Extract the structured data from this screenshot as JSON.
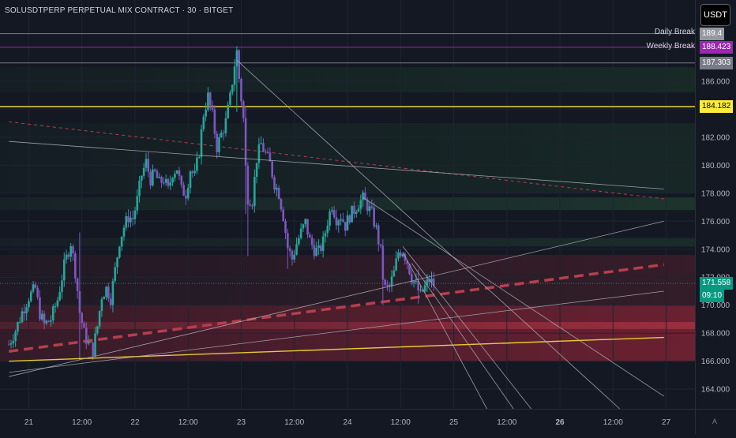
{
  "title": "SOLUSDTPERP PERPETUAL MIX CONTRACT · 30 · BITGET",
  "currency_button": "USDT",
  "scale_button": "A",
  "levels": [
    {
      "key": "daily",
      "name": "Daily Break",
      "value": "189.4",
      "price": 189.4,
      "color": "#9598a1",
      "line": "#787b86"
    },
    {
      "key": "weekly",
      "name": "Weekly Break",
      "value": "188.423",
      "price": 188.423,
      "color": "#9c27b0",
      "line": "#9c27b0"
    },
    {
      "key": "prev",
      "name": "",
      "value": "187.303",
      "price": 187.303,
      "color": "#787b86",
      "line": "#787b86"
    },
    {
      "key": "yellow",
      "name": "",
      "value": "184.182",
      "price": 184.182,
      "color": "#ffeb3b",
      "line": "#ffeb3b"
    }
  ],
  "last_price": {
    "value": "171.558",
    "price": 171.558,
    "countdown": "09:10",
    "color": "#089981"
  },
  "colors": {
    "bull": "#26a69a",
    "bear": "#7e57c2",
    "background": "#141823",
    "grid": "#1f2431",
    "axis_text": "#b2b5be"
  },
  "chart_data": {
    "type": "candlestick",
    "title": "SOLUSDTPERP PERPETUAL MIX CONTRACT · 30 · BITGET",
    "x_range": [
      "Jan 20 19:30",
      "Jan 27 08:00"
    ],
    "ylim": [
      162.6,
      191.8
    ],
    "grid": true,
    "y_ticks": [
      164,
      166,
      168,
      170,
      172,
      174,
      176,
      178,
      180,
      182,
      184,
      186
    ],
    "x_ticks": [
      {
        "label": "21",
        "h": 4.5
      },
      {
        "label": "12:00",
        "h": 16.5
      },
      {
        "label": "22",
        "h": 28.5
      },
      {
        "label": "12:00",
        "h": 40.5
      },
      {
        "label": "23",
        "h": 52.5
      },
      {
        "label": "12:00",
        "h": 64.5
      },
      {
        "label": "24",
        "h": 76.5
      },
      {
        "label": "12:00",
        "h": 88.5
      },
      {
        "label": "25",
        "h": 100.5
      },
      {
        "label": "12:00",
        "h": 112.5
      },
      {
        "label": "26",
        "h": 124.5,
        "bold": true
      },
      {
        "label": "12:00",
        "h": 136.5
      },
      {
        "label": "27",
        "h": 148.5
      }
    ],
    "price_path": [
      [
        0,
        167.2
      ],
      [
        1.5,
        168.2
      ],
      [
        3,
        169.5
      ],
      [
        4.5,
        170.6
      ],
      [
        6,
        171.2
      ],
      [
        7,
        169.4
      ],
      [
        8,
        168.6
      ],
      [
        9.5,
        169.0
      ],
      [
        11,
        170.4
      ],
      [
        12.5,
        172.8
      ],
      [
        14,
        174.5
      ],
      [
        15.2,
        172.0
      ],
      [
        16,
        169.5
      ],
      [
        17,
        168.0
      ],
      [
        18,
        167.2
      ],
      [
        19,
        166.8
      ],
      [
        20,
        168.5
      ],
      [
        21,
        170.7
      ],
      [
        22,
        171.2
      ],
      [
        23,
        170.5
      ],
      [
        24,
        172.5
      ],
      [
        25,
        174.6
      ],
      [
        26,
        175.6
      ],
      [
        27,
        176.3
      ],
      [
        28,
        176.2
      ],
      [
        29,
        177.5
      ],
      [
        30,
        179.3
      ],
      [
        31,
        180.2
      ],
      [
        32,
        179.0
      ],
      [
        33,
        179.4
      ],
      [
        34,
        178.7
      ],
      [
        35,
        179.0
      ],
      [
        36,
        178.2
      ],
      [
        37,
        179.5
      ],
      [
        38,
        179.8
      ],
      [
        39,
        178.2
      ],
      [
        40,
        178.0
      ],
      [
        41,
        179.7
      ],
      [
        42,
        179.2
      ],
      [
        43,
        181.0
      ],
      [
        44,
        183.7
      ],
      [
        45,
        184.9
      ],
      [
        46,
        183.5
      ],
      [
        47,
        181.3
      ],
      [
        48,
        182.2
      ],
      [
        49,
        183.1
      ],
      [
        50,
        184.8
      ],
      [
        51,
        187.2
      ],
      [
        51.5,
        188.1
      ],
      [
        52,
        186.2
      ],
      [
        53,
        183.3
      ],
      [
        53.5,
        179.8
      ],
      [
        54,
        177.7
      ],
      [
        55,
        177.5
      ],
      [
        56,
        180.5
      ],
      [
        57,
        181.5
      ],
      [
        58,
        180.8
      ],
      [
        59,
        180.1
      ],
      [
        60,
        178.7
      ],
      [
        61,
        178.0
      ],
      [
        62,
        176.4
      ],
      [
        63,
        174.1
      ],
      [
        64,
        173.3
      ],
      [
        65,
        174.4
      ],
      [
        66,
        175.2
      ],
      [
        67,
        175.9
      ],
      [
        68,
        174.6
      ],
      [
        69,
        174.0
      ],
      [
        70,
        173.8
      ],
      [
        71,
        174.5
      ],
      [
        72,
        176.0
      ],
      [
        73,
        177.2
      ],
      [
        74,
        176.2
      ],
      [
        75,
        176.4
      ],
      [
        76,
        175.7
      ],
      [
        77,
        176.4
      ],
      [
        78,
        176.8
      ],
      [
        79,
        177.3
      ],
      [
        80,
        177.6
      ],
      [
        81,
        177.1
      ],
      [
        82,
        176.5
      ],
      [
        83,
        175.4
      ],
      [
        84,
        173.8
      ],
      [
        84.5,
        172.0
      ],
      [
        85,
        171.2
      ],
      [
        86,
        171.3
      ],
      [
        87,
        172.3
      ],
      [
        88,
        173.8
      ],
      [
        89,
        173.9
      ],
      [
        90,
        173.1
      ],
      [
        91,
        172.0
      ],
      [
        92,
        171.4
      ],
      [
        93,
        170.7
      ],
      [
        94,
        171.3
      ],
      [
        95,
        171.8
      ],
      [
        96,
        171.5
      ]
    ],
    "trend_lines": [
      {
        "from": [
          0,
          166.0
        ],
        "to": [
          148,
          167.7
        ],
        "color": "#ffeb3b",
        "width": 1.4
      },
      {
        "from": [
          0,
          164.9
        ],
        "to": [
          148,
          176.0
        ],
        "color": "#b2b5be",
        "width": 0.8
      },
      {
        "from": [
          0,
          165.2
        ],
        "to": [
          148,
          171.0
        ],
        "color": "#b2b5be",
        "width": 0.8
      },
      {
        "from": [
          0,
          181.7
        ],
        "to": [
          148,
          178.3
        ],
        "color": "#b2b5be",
        "width": 0.8
      },
      {
        "from": [
          51.5,
          187.5
        ],
        "to": [
          138,
          162.6
        ],
        "color": "#b2b5be",
        "width": 0.8
      },
      {
        "from": [
          80,
          177.7
        ],
        "to": [
          148,
          163.5
        ],
        "color": "#b2b5be",
        "width": 0.8
      },
      {
        "from": [
          89,
          174.2
        ],
        "to": [
          118,
          162.6
        ],
        "color": "#b2b5be",
        "width": 0.8
      },
      {
        "from": [
          89,
          173.8
        ],
        "to": [
          108,
          162.6
        ],
        "color": "#b2b5be",
        "width": 0.8
      },
      {
        "from": [
          91,
          173.0
        ],
        "to": [
          114,
          162.6
        ],
        "color": "#b2b5be",
        "width": 0.8
      }
    ],
    "dashed_lines": [
      {
        "from": [
          0,
          166.7
        ],
        "to": [
          148,
          172.9
        ],
        "color": "#b5404d",
        "width": 3.5
      },
      {
        "from": [
          0,
          183.1
        ],
        "to": [
          148,
          177.6
        ],
        "color": "#b5404d",
        "width": 1
      }
    ],
    "zones": [
      {
        "from": 166.0,
        "to": 170.0,
        "color": "#b3283c",
        "opacity": 0.55
      },
      {
        "from": 168.3,
        "to": 168.8,
        "color": "#d04050",
        "opacity": 0.45
      },
      {
        "from": 172.3,
        "to": 173.6,
        "color": "#a02a3a",
        "opacity": 0.25
      },
      {
        "from": 170.0,
        "to": 172.3,
        "color": "#7a2a33",
        "opacity": 0.3
      },
      {
        "from": 174.2,
        "to": 174.8,
        "color": "#2e6a3f",
        "opacity": 0.25
      },
      {
        "from": 176.8,
        "to": 177.7,
        "color": "#2e6a3f",
        "opacity": 0.35
      },
      {
        "from": 178.0,
        "to": 183.0,
        "color": "#1e4a2c",
        "opacity": 0.3
      },
      {
        "from": 185.2,
        "to": 187.0,
        "color": "#1e4a2c",
        "opacity": 0.35
      }
    ]
  }
}
